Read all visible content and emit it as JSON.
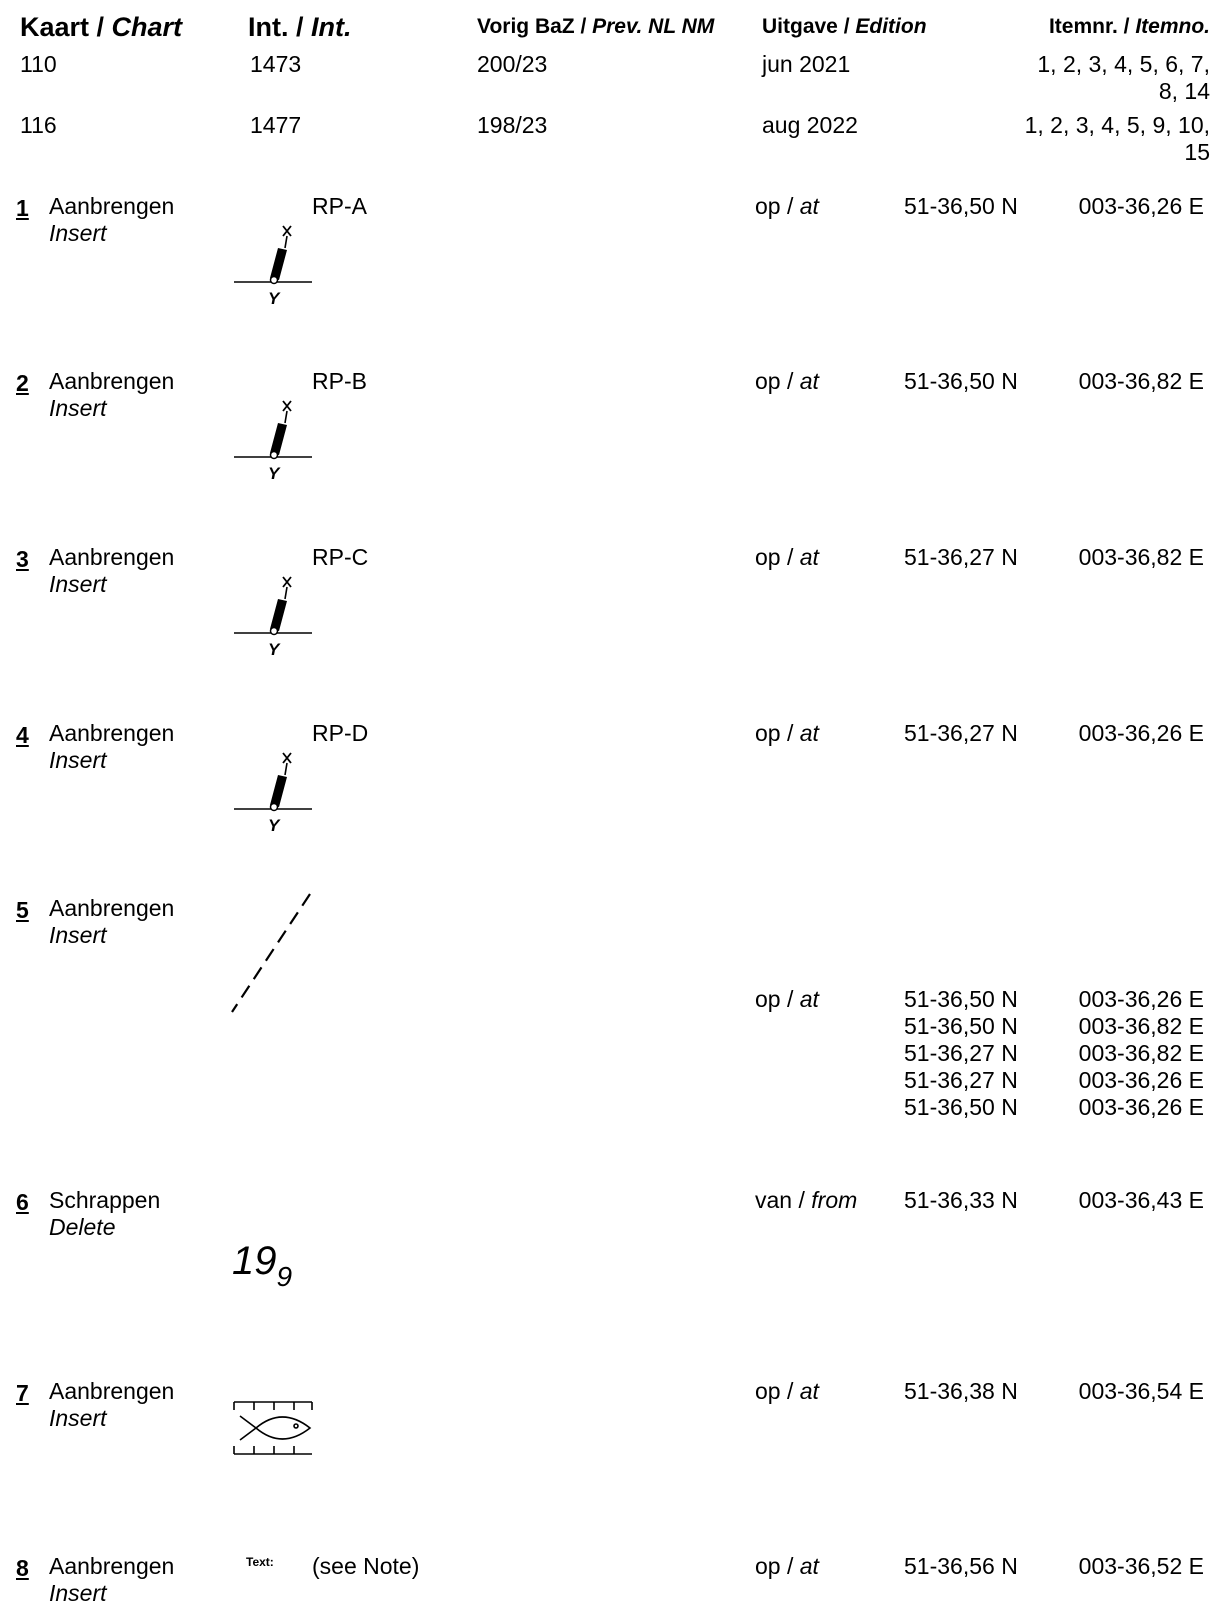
{
  "header": {
    "chart_nl": "Kaart / ",
    "chart_en": "Chart",
    "int_nl": "Int. / ",
    "int_en": "Int.",
    "prev_nl": "Vorig BaZ / ",
    "prev_en": "Prev. NL NM",
    "edition_nl": "Uitgave / ",
    "edition_en": "Edition",
    "item_nl": "Itemnr. / ",
    "item_en": "Itemno."
  },
  "charts": [
    {
      "chart": "110",
      "int": "1473",
      "prev": "200/23",
      "edition": "jun 2021",
      "items_line1": "1, 2, 3, 4, 5, 6, 7,",
      "items_line2": "8, 14"
    },
    {
      "chart": "116",
      "int": "1477",
      "prev": "198/23",
      "edition": "aug 2022",
      "items_line1": "1, 2, 3, 4, 5, 9, 10,",
      "items_line2": "15"
    }
  ],
  "items": [
    {
      "num": "1",
      "action_nl": "Aanbrengen",
      "action_en": "Insert",
      "symbol": "buoy-icon",
      "label": "RP-A",
      "pos_nl": "op / ",
      "pos_en": "at",
      "lat": "51-36,50 N",
      "lon": "003-36,26 E"
    },
    {
      "num": "2",
      "action_nl": "Aanbrengen",
      "action_en": "Insert",
      "symbol": "buoy-icon",
      "label": "RP-B",
      "pos_nl": "op / ",
      "pos_en": "at",
      "lat": "51-36,50 N",
      "lon": "003-36,82 E"
    },
    {
      "num": "3",
      "action_nl": "Aanbrengen",
      "action_en": "Insert",
      "symbol": "buoy-icon",
      "label": "RP-C",
      "pos_nl": "op / ",
      "pos_en": "at",
      "lat": "51-36,27 N",
      "lon": "003-36,82 E"
    },
    {
      "num": "4",
      "action_nl": "Aanbrengen",
      "action_en": "Insert",
      "symbol": "buoy-icon",
      "label": "RP-D",
      "pos_nl": "op / ",
      "pos_en": "at",
      "lat": "51-36,27 N",
      "lon": "003-36,26 E"
    },
    {
      "num": "5",
      "action_nl": "Aanbrengen",
      "action_en": "Insert",
      "symbol": "dashed-line-icon",
      "pos_nl": "op / ",
      "pos_en": "at",
      "coords": [
        {
          "lat": "51-36,50 N",
          "lon": "003-36,26 E"
        },
        {
          "lat": "51-36,50 N",
          "lon": "003-36,82 E"
        },
        {
          "lat": "51-36,27 N",
          "lon": "003-36,82 E"
        },
        {
          "lat": "51-36,27 N",
          "lon": "003-36,26 E"
        },
        {
          "lat": "51-36,50 N",
          "lon": "003-36,26 E"
        }
      ]
    },
    {
      "num": "6",
      "action_nl": "Schrappen",
      "action_en": "Delete",
      "depth_main": "19",
      "depth_sub": "9",
      "pos_nl": "van / ",
      "pos_en": "from",
      "lat": "51-36,33 N",
      "lon": "003-36,43 E"
    },
    {
      "num": "7",
      "action_nl": "Aanbrengen",
      "action_en": "Insert",
      "symbol": "fish-haven-icon",
      "pos_nl": "op / ",
      "pos_en": "at",
      "lat": "51-36,38 N",
      "lon": "003-36,54 E"
    },
    {
      "num": "8",
      "action_nl": "Aanbrengen",
      "action_en": "Insert",
      "text_tag": "Text:",
      "label": "(see Note)",
      "pos_nl": "op / ",
      "pos_en": "at",
      "lat": "51-36,56 N",
      "lon": "003-36,52 E"
    }
  ]
}
